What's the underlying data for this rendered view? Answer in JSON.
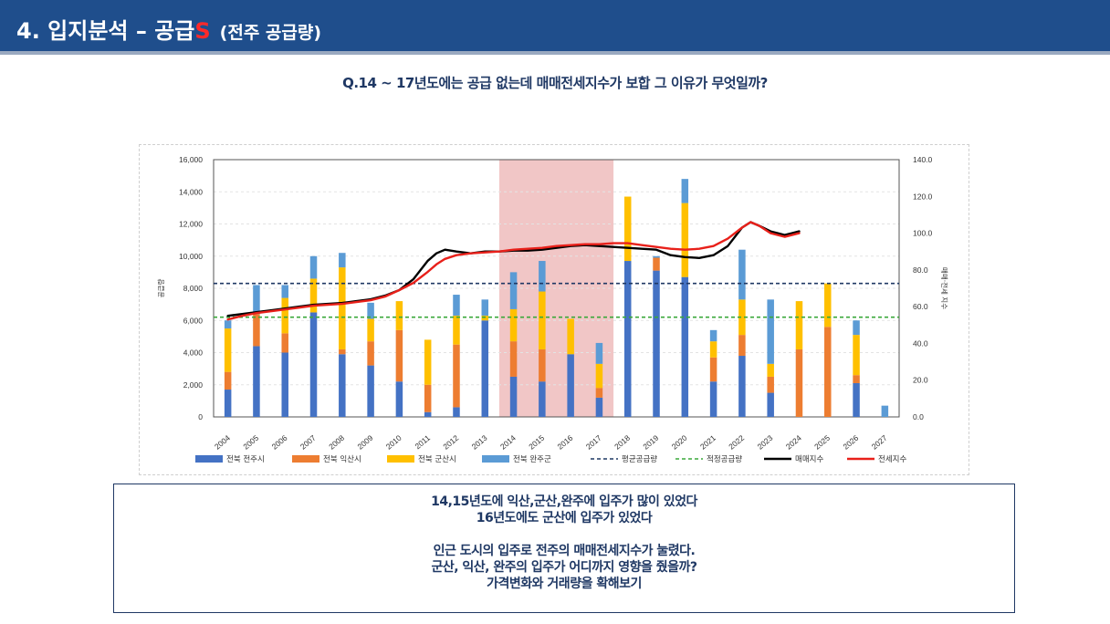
{
  "header": {
    "title_main": "4. 입지분석 – 공급",
    "title_accent": "S",
    "title_sub": "(전주 공급량)"
  },
  "question": "Q.14 ~ 17년도에는 공급 없는데 매매전세지수가 보합 그 이유가 무엇일까?",
  "note": {
    "line1": "14,15년도에 익산,군산,완주에 입주가 많이 있었다",
    "line2": "16년도에도 군산에 입주가 있었다",
    "line3": "인근 도시의 입주로 전주의 매매전세지수가 눌렸다.",
    "line4": "군산, 익산, 완주의 입주가 어디까지 영향을 줬을까?",
    "line5": "가격변화와 거래량을 확해보기"
  },
  "chart_data": {
    "type": "bar",
    "stacked": true,
    "categories": [
      "2004",
      "2005",
      "2006",
      "2007",
      "2008",
      "2009",
      "2010",
      "2011",
      "2012",
      "2013",
      "2014",
      "2015",
      "2016",
      "2017",
      "2018",
      "2019",
      "2020",
      "2021",
      "2022",
      "2023",
      "2024",
      "2025",
      "2026",
      "2027"
    ],
    "ylabel": "공급량",
    "y2label": "매매·전세 지수",
    "ylim": [
      0,
      16000
    ],
    "y2lim": [
      0,
      140
    ],
    "yticks": [
      "0",
      "2,000",
      "4,000",
      "6,000",
      "8,000",
      "10,000",
      "12,000",
      "14,000",
      "16,000"
    ],
    "y2ticks": [
      "0.0",
      "20.0",
      "40.0",
      "60.0",
      "80.0",
      "100.0",
      "120.0",
      "140.0"
    ],
    "highlight_range": [
      "2014",
      "2017"
    ],
    "highlight_color": "#eebcbc",
    "series": [
      {
        "name": "전북 전주시",
        "color": "#4472c4",
        "values": [
          1700,
          4400,
          4000,
          6500,
          3900,
          3200,
          2200,
          300,
          600,
          6000,
          2500,
          2200,
          3900,
          1200,
          9700,
          9100,
          8700,
          2200,
          3800,
          1500,
          0,
          0,
          2100,
          0
        ]
      },
      {
        "name": "전북 익산시",
        "color": "#ed7d31",
        "values": [
          1100,
          2000,
          1200,
          0,
          300,
          1500,
          3200,
          1700,
          3900,
          0,
          2200,
          2000,
          0,
          600,
          0,
          800,
          0,
          1500,
          1300,
          1000,
          4200,
          5600,
          500,
          0
        ]
      },
      {
        "name": "전북 군산시",
        "color": "#ffc000",
        "values": [
          2700,
          0,
          2200,
          2100,
          5100,
          1400,
          1800,
          2800,
          1800,
          300,
          2000,
          3600,
          2200,
          1500,
          4000,
          0,
          4600,
          1000,
          2200,
          800,
          3000,
          2700,
          2500,
          0
        ]
      },
      {
        "name": "전북 완주군",
        "color": "#5b9bd5",
        "values": [
          500,
          1800,
          800,
          1400,
          900,
          1000,
          0,
          0,
          1300,
          1000,
          2300,
          1900,
          0,
          1300,
          0,
          100,
          1500,
          700,
          3100,
          4000,
          0,
          0,
          900,
          700
        ]
      }
    ],
    "hlines": [
      {
        "name": "평균공급량",
        "value": 8300,
        "color": "#1f3864",
        "dash": "4,3"
      },
      {
        "name": "적정공급량",
        "value": 6200,
        "color": "#3aa83a",
        "dash": "4,3"
      }
    ],
    "lines": [
      {
        "name": "매매지수",
        "color": "#000000",
        "axis": "y2",
        "x": [
          2004,
          2004.5,
          2005,
          2005.5,
          2006,
          2006.5,
          2007,
          2007.5,
          2008,
          2008.5,
          2009,
          2009.5,
          2010,
          2010.5,
          2011,
          2011.3,
          2011.6,
          2012,
          2012.5,
          2013,
          2013.5,
          2014,
          2014.5,
          2015,
          2015.5,
          2016,
          2016.5,
          2017,
          2017.5,
          2018,
          2018.5,
          2019,
          2019.5,
          2020,
          2020.5,
          2021,
          2021.5,
          2022,
          2022.3,
          2022.6,
          2023,
          2023.5,
          2024
        ],
        "values": [
          55,
          56,
          57,
          58,
          59,
          60,
          61,
          61.5,
          62,
          63,
          64,
          66,
          69,
          75,
          85,
          89,
          91,
          90,
          89,
          90,
          90,
          90.5,
          90.5,
          91,
          92,
          93,
          93.5,
          93,
          92.5,
          92,
          91.5,
          91,
          88,
          87,
          86.5,
          88,
          93,
          103,
          106,
          104,
          101,
          99,
          101
        ]
      },
      {
        "name": "전세지수",
        "color": "#e8201a",
        "axis": "y2",
        "x": [
          2004,
          2004.5,
          2005,
          2005.5,
          2006,
          2006.5,
          2007,
          2007.5,
          2008,
          2008.5,
          2009,
          2009.5,
          2010,
          2010.5,
          2011,
          2011.3,
          2011.6,
          2012,
          2012.5,
          2013,
          2013.5,
          2014,
          2014.5,
          2015,
          2015.5,
          2016,
          2016.5,
          2017,
          2017.5,
          2018,
          2018.5,
          2019,
          2019.5,
          2020,
          2020.5,
          2021,
          2021.5,
          2022,
          2022.3,
          2022.6,
          2023,
          2023.5,
          2024
        ],
        "values": [
          53,
          55,
          56.5,
          57.5,
          58.5,
          59.5,
          60.5,
          61,
          61.5,
          62.5,
          63.5,
          65.5,
          69,
          73,
          79,
          83,
          86,
          88,
          89,
          89.5,
          90,
          91,
          91.5,
          92,
          93,
          93.5,
          94,
          94,
          94.5,
          94.5,
          93.5,
          92.5,
          91.5,
          91,
          91.5,
          93,
          97,
          103,
          106,
          104,
          100,
          98,
          100
        ]
      }
    ],
    "legend": [
      {
        "label": "전북 전주시",
        "kind": "box",
        "color": "#4472c4"
      },
      {
        "label": "전북 익산시",
        "kind": "box",
        "color": "#ed7d31"
      },
      {
        "label": "전북 군산시",
        "kind": "box",
        "color": "#ffc000"
      },
      {
        "label": "전북 완주군",
        "kind": "box",
        "color": "#5b9bd5"
      },
      {
        "label": "평균공급량",
        "kind": "dash",
        "color": "#1f3864"
      },
      {
        "label": "적정공급량",
        "kind": "dash",
        "color": "#3aa83a"
      },
      {
        "label": "매매지수",
        "kind": "line",
        "color": "#000000"
      },
      {
        "label": "전세지수",
        "kind": "line",
        "color": "#e8201a"
      }
    ],
    "legend_position": "bottom",
    "grid": true
  }
}
